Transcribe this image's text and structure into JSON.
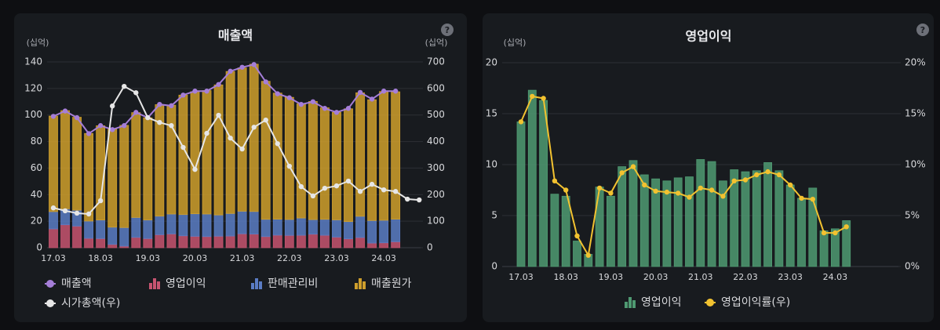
{
  "chart_data": [
    {
      "type": "bar",
      "stacked": true,
      "title": "매출액",
      "y_unit": "(십억)",
      "y2_unit": "(십억)",
      "help_icon": "?",
      "categories": [
        "17.03",
        null,
        null,
        null,
        "18.03",
        null,
        null,
        null,
        "19.03",
        null,
        null,
        null,
        "20.03",
        null,
        null,
        null,
        "21.03",
        null,
        null,
        null,
        "22.03",
        null,
        null,
        null,
        "23.03",
        null,
        null,
        null,
        "24.03",
        null,
        null,
        null
      ],
      "ylim": [
        0,
        140
      ],
      "yticks": [
        0,
        20,
        40,
        60,
        80,
        100,
        120,
        140
      ],
      "y2lim": [
        0,
        700
      ],
      "y2ticks": [
        0,
        100,
        200,
        300,
        400,
        500,
        600,
        700
      ],
      "grid": true,
      "series": [
        {
          "name": "매출액",
          "type": "line",
          "color": "#a57ed8",
          "values": [
            99,
            103,
            98,
            86,
            92,
            89,
            92,
            102,
            98,
            108,
            107,
            115,
            118,
            118,
            123,
            133,
            136,
            138,
            125,
            116,
            113,
            108,
            110,
            105,
            102,
            105,
            117,
            112,
            118,
            118,
            null,
            null
          ]
        },
        {
          "name": "영업이익",
          "type": "bar",
          "color": "#c75470",
          "values": [
            14.2,
            17.3,
            16.3,
            7.1,
            6.9,
            2.5,
            1.2,
            7.8,
            6.9,
            9.8,
            10.4,
            9.0,
            8.6,
            8.4,
            8.7,
            8.8,
            10.5,
            10.3,
            8.4,
            9.5,
            9.3,
            9.4,
            10.2,
            9.4,
            8.0,
            6.7,
            7.7,
            3.5,
            3.7,
            4.5,
            null,
            null
          ]
        },
        {
          "name": "판매관리비",
          "type": "bar",
          "color": "#5a7cc4",
          "values": [
            13,
            12,
            12,
            13,
            14,
            13,
            14,
            15,
            14,
            14,
            15,
            16,
            17,
            17,
            16,
            17,
            17,
            17,
            13,
            12,
            12,
            13,
            11,
            12,
            13,
            13,
            16,
            17,
            17,
            17,
            null,
            null
          ]
        },
        {
          "name": "매출원가",
          "type": "bar",
          "color": "#cf9f2c",
          "values": [
            72,
            74,
            70,
            66,
            71,
            74,
            77,
            79,
            77,
            84,
            82,
            90,
            92,
            93,
            98,
            107,
            108,
            111,
            104,
            95,
            92,
            86,
            89,
            84,
            81,
            85,
            93,
            91,
            97,
            96,
            null,
            null
          ]
        },
        {
          "name": "시가총액(우)",
          "type": "line",
          "axis": "y2",
          "color": "#e6e6e6",
          "values": [
            150,
            139,
            130,
            127,
            177,
            534,
            608,
            584,
            490,
            472,
            460,
            378,
            295,
            431,
            499,
            413,
            372,
            454,
            481,
            392,
            307,
            230,
            195,
            224,
            233,
            251,
            212,
            239,
            218,
            212,
            183,
            180
          ]
        }
      ]
    },
    {
      "type": "bar",
      "title": "영업이익",
      "y_unit": "(십억)",
      "help_icon": "?",
      "categories": [
        "17.03",
        null,
        null,
        null,
        "18.03",
        null,
        null,
        null,
        "19.03",
        null,
        null,
        null,
        "20.03",
        null,
        null,
        null,
        "21.03",
        null,
        null,
        null,
        "22.03",
        null,
        null,
        null,
        "23.03",
        null,
        null,
        null,
        "24.03",
        null
      ],
      "ylim": [
        0,
        20
      ],
      "yticks": [
        0,
        5,
        10,
        15,
        20
      ],
      "y2lim": [
        0,
        20
      ],
      "y2ticks": [
        {
          "value": 0,
          "label": "0%"
        },
        {
          "value": 5,
          "label": "5%"
        },
        {
          "value": 10,
          "label": "10%"
        },
        {
          "value": 15,
          "label": "15%"
        },
        {
          "value": 20,
          "label": "20%"
        }
      ],
      "grid": true,
      "series": [
        {
          "name": "영업이익",
          "type": "bar",
          "color": "#4f9a72",
          "values": [
            14.2,
            17.3,
            16.3,
            7.1,
            6.9,
            2.5,
            1.2,
            7.8,
            6.9,
            9.8,
            10.4,
            9.0,
            8.6,
            8.4,
            8.7,
            8.8,
            10.5,
            10.3,
            8.4,
            9.5,
            9.3,
            9.4,
            10.2,
            9.4,
            8.0,
            6.7,
            7.7,
            3.5,
            3.7,
            4.5
          ]
        },
        {
          "name": "영업이익률(우)",
          "type": "line",
          "axis": "y2",
          "color": "#f2c230",
          "values": [
            14.2,
            16.7,
            16.5,
            8.4,
            7.5,
            3.0,
            1.1,
            7.7,
            7.2,
            9.2,
            9.8,
            8.0,
            7.4,
            7.3,
            7.2,
            6.8,
            7.7,
            7.5,
            6.9,
            8.4,
            8.5,
            9.0,
            9.3,
            9.0,
            8.0,
            6.7,
            6.6,
            3.3,
            3.3,
            3.9
          ]
        }
      ]
    }
  ]
}
